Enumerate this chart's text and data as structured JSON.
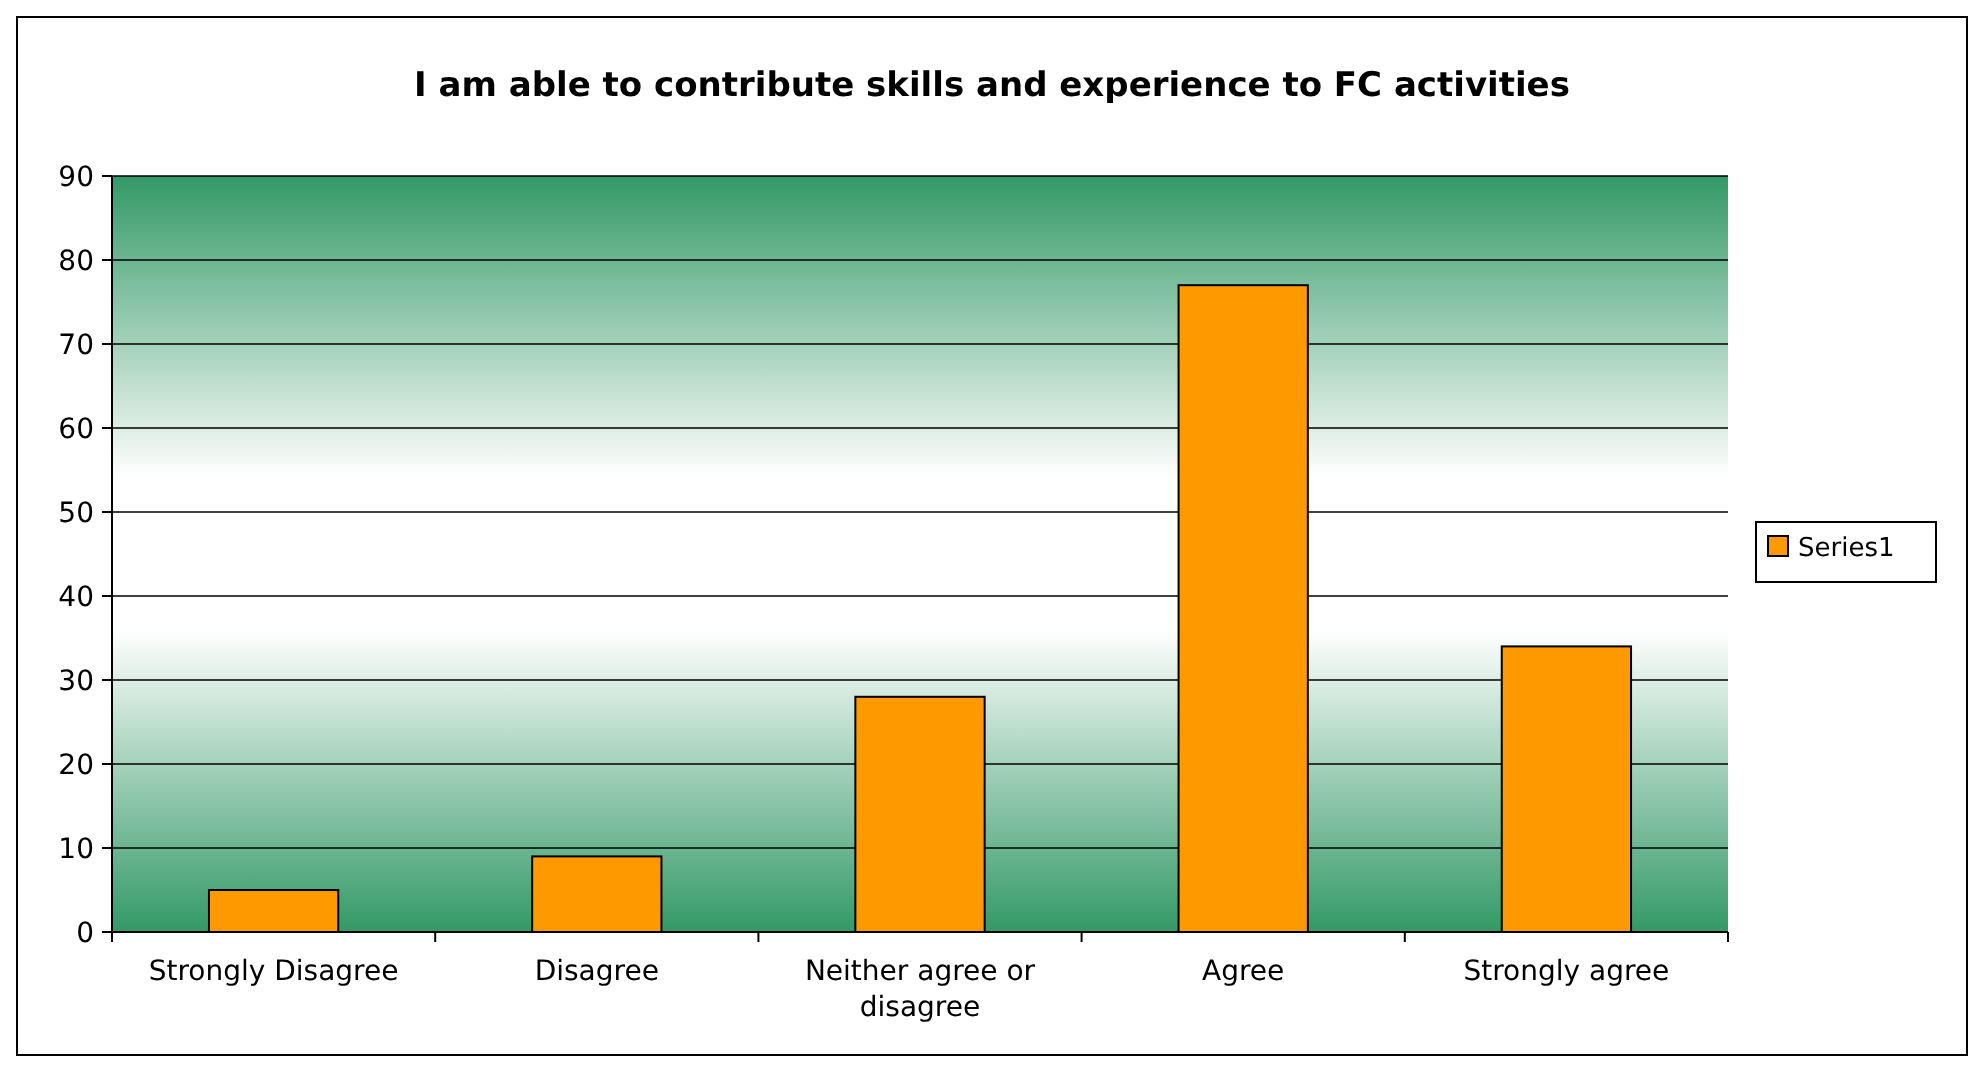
{
  "chart_data": {
    "type": "bar",
    "title": "I am able to contribute skills and experience to FC activities",
    "categories": [
      "Strongly Disagree",
      "Disagree",
      "Neither agree or disagree",
      "Agree",
      "Strongly agree"
    ],
    "series": [
      {
        "name": "Series1",
        "color": "#ff9900",
        "values": [
          5,
          9,
          28,
          77,
          34
        ]
      }
    ],
    "ylim": [
      0,
      90
    ],
    "yticks": [
      0,
      10,
      20,
      30,
      40,
      50,
      60,
      70,
      80,
      90
    ],
    "grid": "y",
    "legend": "right"
  }
}
